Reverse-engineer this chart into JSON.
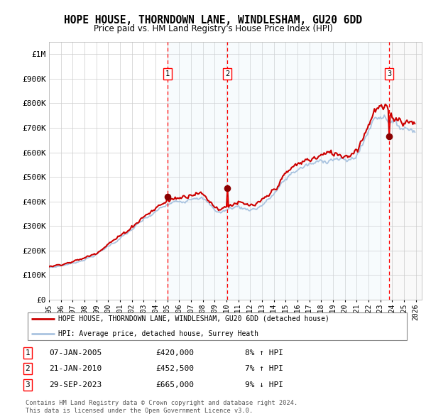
{
  "title": "HOPE HOUSE, THORNDOWN LANE, WINDLESHAM, GU20 6DD",
  "subtitle": "Price paid vs. HM Land Registry's House Price Index (HPI)",
  "legend_house": "HOPE HOUSE, THORNDOWN LANE, WINDLESHAM, GU20 6DD (detached house)",
  "legend_hpi": "HPI: Average price, detached house, Surrey Heath",
  "footer1": "Contains HM Land Registry data © Crown copyright and database right 2024.",
  "footer2": "This data is licensed under the Open Government Licence v3.0.",
  "transactions": [
    {
      "num": 1,
      "date": "07-JAN-2005",
      "price": 420000,
      "pct": "8%",
      "dir": "↑"
    },
    {
      "num": 2,
      "date": "21-JAN-2010",
      "price": 452500,
      "pct": "7%",
      "dir": "↑"
    },
    {
      "num": 3,
      "date": "29-SEP-2023",
      "price": 665000,
      "pct": "9%",
      "dir": "↓"
    }
  ],
  "transaction_years": [
    2005.03,
    2010.06,
    2023.75
  ],
  "transaction_prices": [
    420000,
    452500,
    665000
  ],
  "hpi_color": "#aac4e0",
  "house_color": "#cc0000",
  "vline_color": "#ff0000",
  "dot_color": "#8b0000",
  "shade_color": "#d8eaf7",
  "ylim": [
    0,
    1050000
  ],
  "yticks": [
    0,
    100000,
    200000,
    300000,
    400000,
    500000,
    600000,
    700000,
    800000,
    900000,
    1000000
  ],
  "ytick_labels": [
    "£0",
    "£100K",
    "£200K",
    "£300K",
    "£400K",
    "£500K",
    "£600K",
    "£700K",
    "£800K",
    "£900K",
    "£1M"
  ],
  "xmin": 1995.0,
  "xmax": 2026.5
}
